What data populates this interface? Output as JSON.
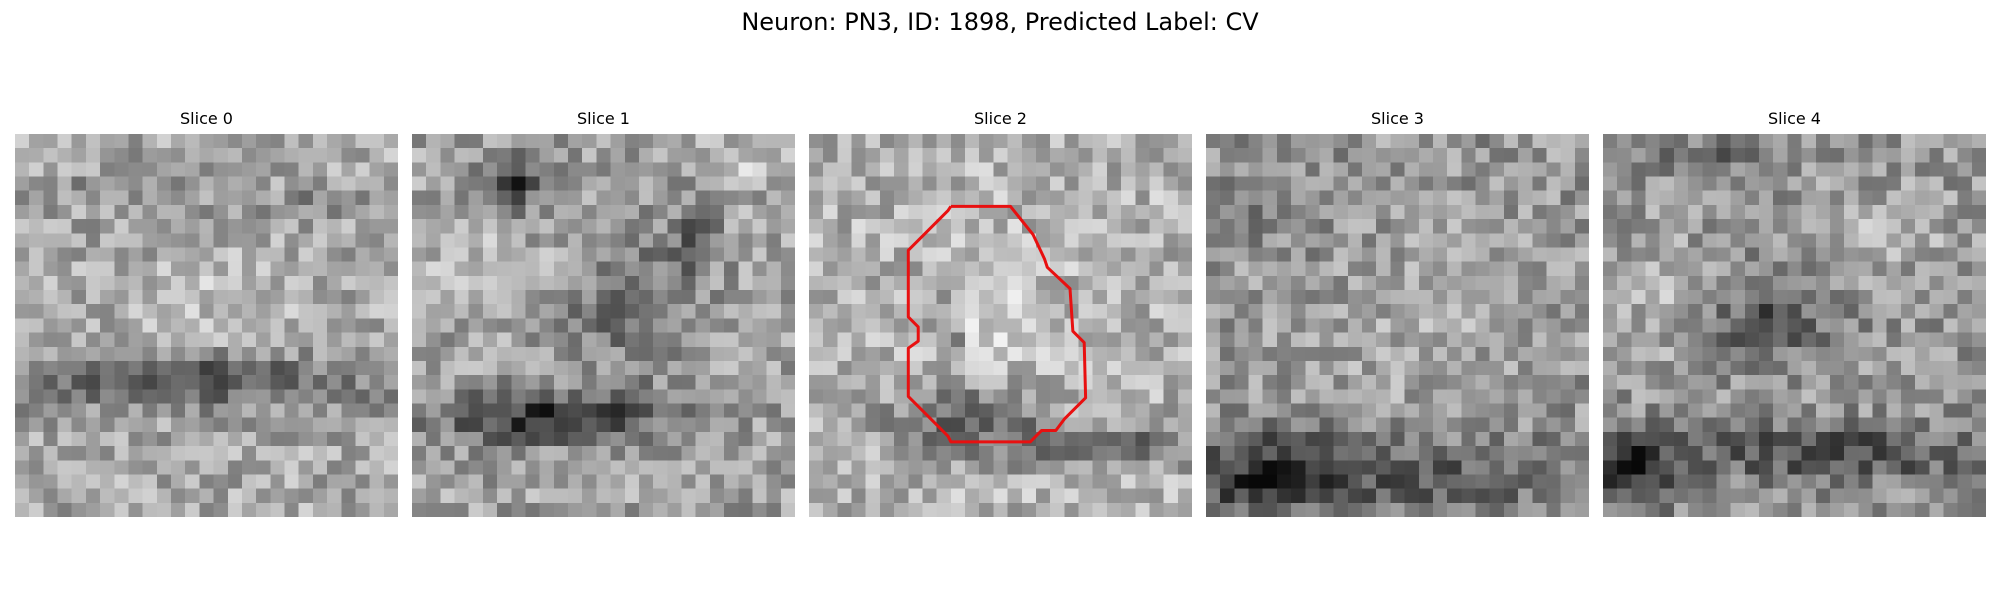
{
  "figure": {
    "title": "Neuron: PN3, ID: 1898, Predicted Label: CV"
  },
  "colors": {
    "background": "#ffffff",
    "contour": "#e81010",
    "colormap": "grayscale"
  },
  "panels": [
    {
      "title": "Slice 0"
    },
    {
      "title": "Slice 1"
    },
    {
      "title": "Slice 2",
      "has_contour": true
    },
    {
      "title": "Slice 3"
    },
    {
      "title": "Slice 4"
    }
  ]
}
